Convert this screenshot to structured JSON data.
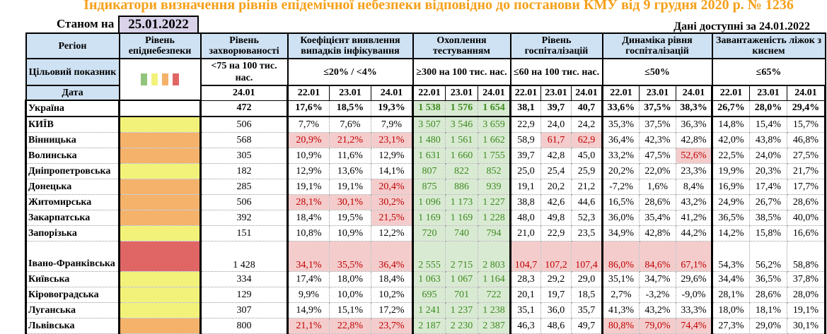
{
  "title": "Індикатори визначення рівнів епідемічної небезпеки відповідно до постанови КМУ від 9 грудня 2020 р. № 1236",
  "as_of_label": "Станом на",
  "as_of_date": "25.01.2022",
  "available_label": "Дані доступні за  24.01.2022",
  "headers": {
    "region": "Регіон",
    "level": "Рівень епіднебезпеки",
    "incidence": "Рівень захворюваності",
    "coef": "Коефіцієнт виявлення випадків інфікування",
    "testing": "Охоплення тестуванням",
    "hosp": "Рівень госпіталізацій",
    "dyn": "Динаміка рівня госпіталізацій",
    "beds": "Завантаженість ліжок з киснем"
  },
  "targets": {
    "label": "Цільовий показник",
    "incidence": "<75 на 100 тис. нас.",
    "coef": "≤20% / <4%",
    "testing": "≥300 на 100 тис. нас.",
    "hosp": "≤60 на 100 тис. нас.",
    "dyn": "≤50%",
    "beds": "≤65%"
  },
  "dates": {
    "label": "Дата",
    "incidence": "24.01",
    "triple": [
      "22.01",
      "23.01",
      "24.01"
    ]
  },
  "level_colors": {
    "green": "#93c47d",
    "yellow": "#f2f27a",
    "orange": "#f4b26b",
    "red": "#e06666"
  },
  "rows": [
    {
      "region": "Україна",
      "level": "",
      "incidence": "472",
      "coef": [
        "17,6%",
        "18,5%",
        "19,3%"
      ],
      "testing": [
        "1 538",
        "1 576",
        "1 654"
      ],
      "hosp": [
        "38,1",
        "39,7",
        "40,7"
      ],
      "dyn": [
        "33,6%",
        "37,5%",
        "38,3%"
      ],
      "beds": [
        "26,7%",
        "28,0%",
        "29,4%"
      ],
      "hl": {}
    },
    {
      "region": "КИЇВ",
      "level": "yellow",
      "incidence": "506",
      "coef": [
        "7,7%",
        "7,6%",
        "7,9%"
      ],
      "testing": [
        "3 507",
        "3 546",
        "3 659"
      ],
      "hosp": [
        "22,9",
        "24,0",
        "24,2"
      ],
      "dyn": [
        "35,3%",
        "37,5%",
        "36,3%"
      ],
      "beds": [
        "14,8%",
        "15,4%",
        "15,7%"
      ],
      "hl": {}
    },
    {
      "region": "Вінницька",
      "level": "orange",
      "incidence": "568",
      "coef": [
        "20,9%",
        "21,2%",
        "23,1%"
      ],
      "testing": [
        "1 480",
        "1 561",
        "1 662"
      ],
      "hosp": [
        "58,9",
        "61,7",
        "62,9"
      ],
      "dyn": [
        "36,4%",
        "42,3%",
        "42,8%"
      ],
      "beds": [
        "42,0%",
        "43,8%",
        "46,8%"
      ],
      "hl": {
        "coef": [
          0,
          1,
          2
        ],
        "hosp": [
          1,
          2
        ]
      }
    },
    {
      "region": "Волинська",
      "level": "orange",
      "incidence": "305",
      "coef": [
        "10,9%",
        "11,6%",
        "12,9%"
      ],
      "testing": [
        "1 631",
        "1 660",
        "1 755"
      ],
      "hosp": [
        "39,7",
        "42,8",
        "45,0"
      ],
      "dyn": [
        "33,2%",
        "47,5%",
        "52,6%"
      ],
      "beds": [
        "22,5%",
        "24,0%",
        "27,5%"
      ],
      "hl": {
        "dyn": [
          2
        ]
      }
    },
    {
      "region": "Дніпропетровська",
      "level": "yellow",
      "incidence": "182",
      "coef": [
        "12,9%",
        "13,6%",
        "14,1%"
      ],
      "testing": [
        "807",
        "822",
        "852"
      ],
      "hosp": [
        "25,0",
        "25,4",
        "25,9"
      ],
      "dyn": [
        "20,2%",
        "22,0%",
        "23,3%"
      ],
      "beds": [
        "19,9%",
        "20,3%",
        "21,7%"
      ],
      "hl": {}
    },
    {
      "region": "Донецька",
      "level": "orange",
      "incidence": "285",
      "coef": [
        "19,1%",
        "19,1%",
        "20,4%"
      ],
      "testing": [
        "875",
        "886",
        "939"
      ],
      "hosp": [
        "19,1",
        "20,2",
        "21,2"
      ],
      "dyn": [
        "-7,2%",
        "1,6%",
        "8,4%"
      ],
      "beds": [
        "16,9%",
        "17,4%",
        "17,7%"
      ],
      "hl": {
        "coef": [
          2
        ]
      }
    },
    {
      "region": "Житомирська",
      "level": "orange",
      "incidence": "506",
      "coef": [
        "28,1%",
        "30,1%",
        "30,2%"
      ],
      "testing": [
        "1 096",
        "1 173",
        "1 227"
      ],
      "hosp": [
        "38,8",
        "42,6",
        "44,6"
      ],
      "dyn": [
        "16,5%",
        "28,6%",
        "43,2%"
      ],
      "beds": [
        "24,9%",
        "26,7%",
        "28,6%"
      ],
      "hl": {
        "coef": [
          0,
          1,
          2
        ]
      }
    },
    {
      "region": "Закарпатська",
      "level": "orange",
      "incidence": "392",
      "coef": [
        "18,4%",
        "19,5%",
        "21,5%"
      ],
      "testing": [
        "1 169",
        "1 169",
        "1 228"
      ],
      "hosp": [
        "48,0",
        "49,8",
        "52,3"
      ],
      "dyn": [
        "36,0%",
        "35,4%",
        "41,2%"
      ],
      "beds": [
        "36,5%",
        "38,5%",
        "40,0%"
      ],
      "hl": {
        "coef": [
          2
        ]
      }
    },
    {
      "region": "Запорізька",
      "level": "yellow",
      "incidence": "151",
      "coef": [
        "10,8%",
        "10,9%",
        "12,2%"
      ],
      "testing": [
        "720",
        "740",
        "794"
      ],
      "hosp": [
        "21,0",
        "22,9",
        "23,5"
      ],
      "dyn": [
        "34,9%",
        "42,8%",
        "44,2%"
      ],
      "beds": [
        "14,2%",
        "15,8%",
        "16,6%"
      ],
      "hl": {}
    },
    {
      "region": "Івано-Франківська",
      "level": "red",
      "incidence": "1 428",
      "coef": [
        "34,1%",
        "35,5%",
        "36,4%"
      ],
      "testing": [
        "2 555",
        "2 715",
        "2 803"
      ],
      "hosp": [
        "104,7",
        "107,2",
        "107,4"
      ],
      "dyn": [
        "86,0%",
        "84,6%",
        "67,1%"
      ],
      "beds": [
        "54,3%",
        "56,2%",
        "58,8%"
      ],
      "hl": {
        "coef": [
          0,
          1,
          2
        ],
        "hosp": [
          0,
          1,
          2
        ],
        "dyn": [
          0,
          1,
          2
        ]
      }
    },
    {
      "region": "Київська",
      "level": "yellow",
      "incidence": "334",
      "coef": [
        "17,4%",
        "18,0%",
        "18,4%"
      ],
      "testing": [
        "1 063",
        "1 067",
        "1 164"
      ],
      "hosp": [
        "28,3",
        "29,2",
        "29,0"
      ],
      "dyn": [
        "35,1%",
        "34,7%",
        "29,6%"
      ],
      "beds": [
        "34,4%",
        "36,5%",
        "37,8%"
      ],
      "hl": {}
    },
    {
      "region": "Кіровоградська",
      "level": "yellow",
      "incidence": "129",
      "coef": [
        "9,9%",
        "10,0%",
        "10,2%"
      ],
      "testing": [
        "695",
        "701",
        "722"
      ],
      "hosp": [
        "20,1",
        "19,7",
        "18,5"
      ],
      "dyn": [
        "2,7%",
        "-3,2%",
        "-9,0%"
      ],
      "beds": [
        "28,1%",
        "28,6%",
        "28,0%"
      ],
      "hl": {}
    },
    {
      "region": "Луганська",
      "level": "yellow",
      "incidence": "307",
      "coef": [
        "14,9%",
        "15,1%",
        "17,2%"
      ],
      "testing": [
        "1 241",
        "1 237",
        "1 238"
      ],
      "hosp": [
        "35,1",
        "36,0",
        "35,7"
      ],
      "dyn": [
        "41,3%",
        "43,2%",
        "33,3%"
      ],
      "beds": [
        "18,0%",
        "18,1%",
        "19,1%"
      ],
      "hl": {}
    },
    {
      "region": "Львівська",
      "level": "orange",
      "incidence": "800",
      "coef": [
        "21,1%",
        "22,8%",
        "23,7%"
      ],
      "testing": [
        "2 187",
        "2 230",
        "2 387"
      ],
      "hosp": [
        "46,3",
        "48,6",
        "49,7"
      ],
      "dyn": [
        "80,8%",
        "79,0%",
        "74,4%"
      ],
      "beds": [
        "27,3%",
        "29,0%",
        "30,1%"
      ],
      "hl": {
        "coef": [
          0,
          1,
          2
        ],
        "dyn": [
          0,
          1,
          2
        ]
      }
    }
  ]
}
